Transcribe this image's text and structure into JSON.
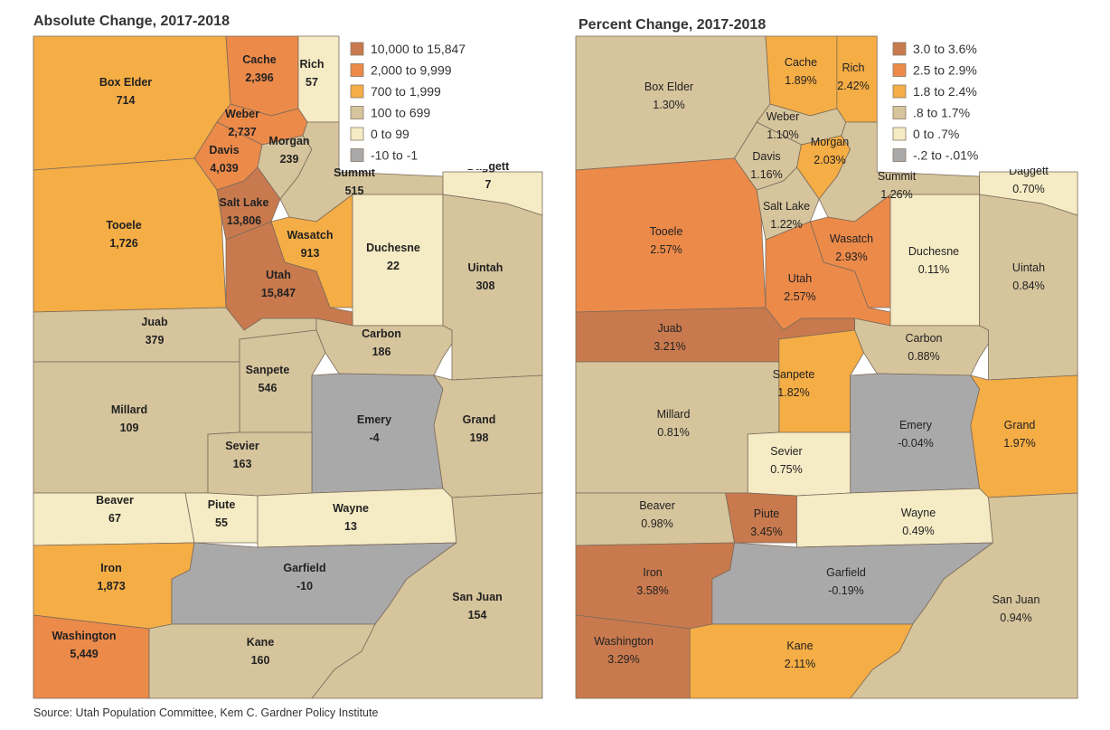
{
  "colors": [
    "#c87a4e",
    "#ec8a4a",
    "#f5ad45",
    "#d6c49c",
    "#f5ebc4",
    "#aaa9aa"
  ],
  "absolute_map": {
    "title": "Absolute Change, 2017-2018",
    "legend": [
      "10,000 to 15,847",
      "2,000 to 9,999",
      "700 to 1,999",
      "100 to 699",
      "0 to 99",
      "-10 to -1"
    ]
  },
  "percent_map": {
    "title": "Percent Change, 2017-2018",
    "legend": [
      "3.0 to 3.6%",
      "2.5 to 2.9%",
      "1.8 to 2.4%",
      ".8 to 1.7%",
      "0 to .7%",
      "-.2 to -.01%"
    ]
  },
  "counties": [
    {
      "name": "Box Elder",
      "abs": "714",
      "abs_class": 2,
      "pct": "1.30%",
      "pct_class": 3
    },
    {
      "name": "Cache",
      "abs": "2,396",
      "abs_class": 1,
      "pct": "1.89%",
      "pct_class": 2
    },
    {
      "name": "Rich",
      "abs": "57",
      "abs_class": 4,
      "pct": "2.42%",
      "pct_class": 2
    },
    {
      "name": "Weber",
      "abs": "2,737",
      "abs_class": 1,
      "pct": "1.10%",
      "pct_class": 3
    },
    {
      "name": "Davis",
      "abs": "4,039",
      "abs_class": 1,
      "pct": "1.16%",
      "pct_class": 3
    },
    {
      "name": "Morgan",
      "abs": "239",
      "abs_class": 3,
      "pct": "2.03%",
      "pct_class": 2
    },
    {
      "name": "Summit",
      "abs": "515",
      "abs_class": 3,
      "pct": "1.26%",
      "pct_class": 3
    },
    {
      "name": "Daggett",
      "abs": "7",
      "abs_class": 4,
      "pct": "0.70%",
      "pct_class": 4
    },
    {
      "name": "Tooele",
      "abs": "1,726",
      "abs_class": 2,
      "pct": "2.57%",
      "pct_class": 1
    },
    {
      "name": "Salt Lake",
      "abs": "13,806",
      "abs_class": 0,
      "pct": "1.22%",
      "pct_class": 3
    },
    {
      "name": "Wasatch",
      "abs": "913",
      "abs_class": 2,
      "pct": "2.93%",
      "pct_class": 1
    },
    {
      "name": "Duchesne",
      "abs": "22",
      "abs_class": 4,
      "pct": "0.11%",
      "pct_class": 4
    },
    {
      "name": "Uintah",
      "abs": "308",
      "abs_class": 3,
      "pct": "0.84%",
      "pct_class": 3
    },
    {
      "name": "Utah",
      "abs": "15,847",
      "abs_class": 0,
      "pct": "2.57%",
      "pct_class": 1
    },
    {
      "name": "Juab",
      "abs": "379",
      "abs_class": 3,
      "pct": "3.21%",
      "pct_class": 0
    },
    {
      "name": "Carbon",
      "abs": "186",
      "abs_class": 3,
      "pct": "0.88%",
      "pct_class": 3
    },
    {
      "name": "Sanpete",
      "abs": "546",
      "abs_class": 3,
      "pct": "1.82%",
      "pct_class": 2
    },
    {
      "name": "Millard",
      "abs": "109",
      "abs_class": 3,
      "pct": "0.81%",
      "pct_class": 3
    },
    {
      "name": "Emery",
      "abs": "-4",
      "abs_class": 5,
      "pct": "-0.04%",
      "pct_class": 5
    },
    {
      "name": "Grand",
      "abs": "198",
      "abs_class": 3,
      "pct": "1.97%",
      "pct_class": 2
    },
    {
      "name": "Sevier",
      "abs": "163",
      "abs_class": 3,
      "pct": "0.75%",
      "pct_class": 4
    },
    {
      "name": "Beaver",
      "abs": "67",
      "abs_class": 4,
      "pct": "0.98%",
      "pct_class": 3
    },
    {
      "name": "Piute",
      "abs": "55",
      "abs_class": 4,
      "pct": "3.45%",
      "pct_class": 0
    },
    {
      "name": "Wayne",
      "abs": "13",
      "abs_class": 4,
      "pct": "0.49%",
      "pct_class": 4
    },
    {
      "name": "Iron",
      "abs": "1,873",
      "abs_class": 2,
      "pct": "3.58%",
      "pct_class": 0
    },
    {
      "name": "Garfield",
      "abs": "-10",
      "abs_class": 5,
      "pct": "-0.19%",
      "pct_class": 5
    },
    {
      "name": "San Juan",
      "abs": "154",
      "abs_class": 3,
      "pct": "0.94%",
      "pct_class": 3
    },
    {
      "name": "Washington",
      "abs": "5,449",
      "abs_class": 1,
      "pct": "3.29%",
      "pct_class": 0
    },
    {
      "name": "Kane",
      "abs": "160",
      "abs_class": 3,
      "pct": "2.11%",
      "pct_class": 2
    }
  ],
  "source": "Source: Utah Population Committee,  Kem C. Gardner Policy Institute"
}
